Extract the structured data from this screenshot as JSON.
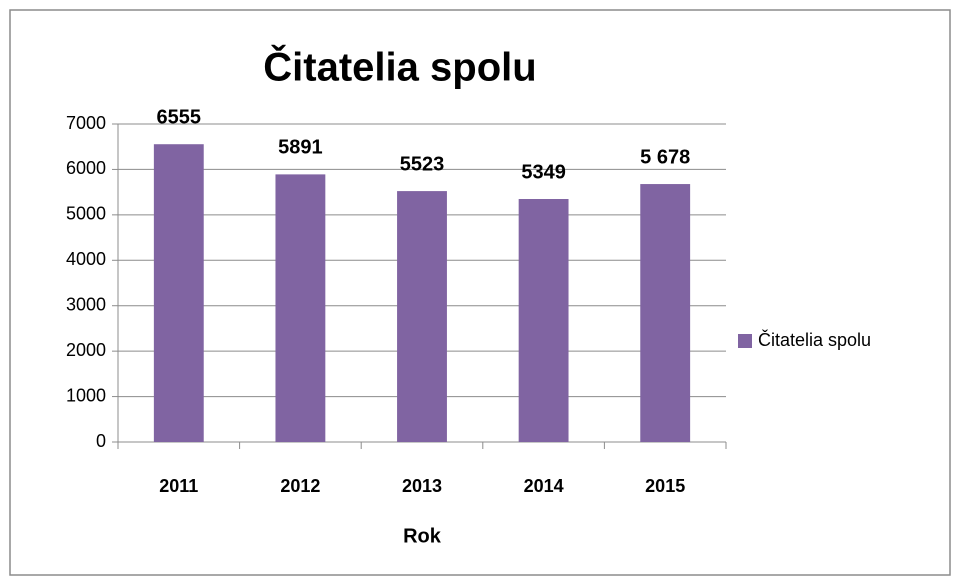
{
  "chart_data": {
    "type": "bar",
    "title": "Čitatelia spolu",
    "x_label": "Rok",
    "categories": [
      "2011",
      "2012",
      "2013",
      "2014",
      "2015"
    ],
    "series": [
      {
        "name": "Čitatelia spolu",
        "color": "#8064a2",
        "values": [
          6555,
          5891,
          5523,
          5349,
          5678
        ],
        "value_labels": [
          "6555",
          "5891",
          "5523",
          "5349",
          "5 678"
        ]
      }
    ],
    "ylim": [
      0,
      7000
    ],
    "yticks": [
      0,
      1000,
      2000,
      3000,
      4000,
      5000,
      6000,
      7000
    ],
    "grid": true,
    "legend": "right"
  }
}
